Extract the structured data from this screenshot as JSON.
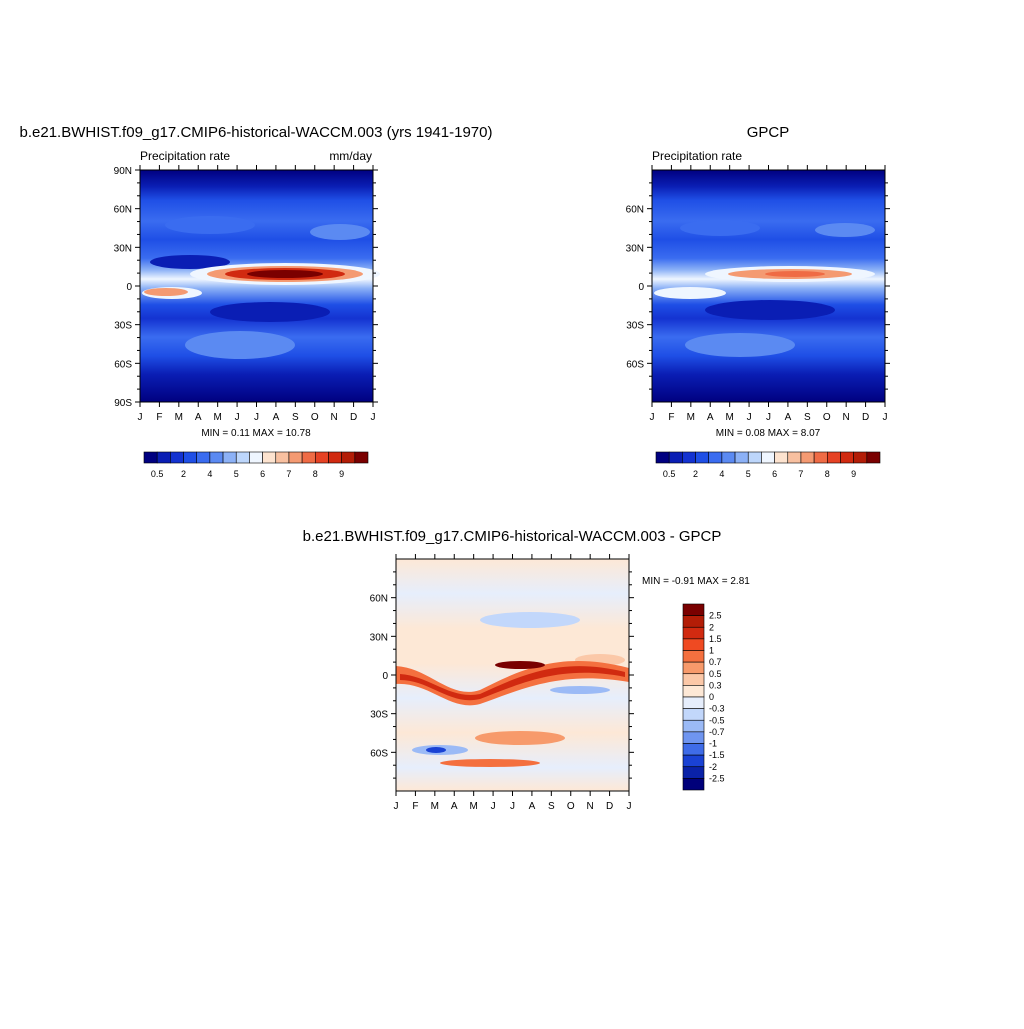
{
  "chart_data": [
    {
      "type": "heatmap",
      "title": "b.e21.BWHIST.f09_g17.CMIP6-historical-WACCM.003 (yrs 1941-1970)",
      "left_label": "Precipitation rate",
      "right_label": "mm/day",
      "x_ticks": [
        "J",
        "F",
        "M",
        "A",
        "M",
        "J",
        "J",
        "A",
        "S",
        "O",
        "N",
        "D",
        "J"
      ],
      "y_ticks": [
        "90N",
        "60N",
        "30N",
        "0",
        "30S",
        "60S",
        "90S"
      ],
      "stats": "MIN =   0.11 MAX =  10.78",
      "colorbar_labels": [
        "0.5",
        "2",
        "4",
        "5",
        "6",
        "7",
        "8",
        "9"
      ],
      "itcz": {
        "peak_value": 10.78,
        "peak_month": "Jul"
      }
    },
    {
      "type": "heatmap",
      "title": "GPCP",
      "left_label": "Precipitation rate",
      "right_label": "",
      "x_ticks": [
        "J",
        "F",
        "M",
        "A",
        "M",
        "J",
        "J",
        "A",
        "S",
        "O",
        "N",
        "D",
        "J"
      ],
      "y_ticks": [
        "60N",
        "30N",
        "0",
        "30S",
        "60S"
      ],
      "stats": "MIN =   0.08 MAX =   8.07",
      "colorbar_labels": [
        "0.5",
        "2",
        "4",
        "5",
        "6",
        "7",
        "8",
        "9"
      ],
      "itcz": {
        "peak_value": 8.07,
        "peak_month": "Aug"
      }
    },
    {
      "type": "heatmap",
      "title": "b.e21.BWHIST.f09_g17.CMIP6-historical-WACCM.003 - GPCP",
      "left_label": "",
      "right_label": "",
      "x_ticks": [
        "J",
        "F",
        "M",
        "A",
        "M",
        "J",
        "J",
        "A",
        "S",
        "O",
        "N",
        "D",
        "J"
      ],
      "y_ticks": [
        "60N",
        "30N",
        "0",
        "30S",
        "60S"
      ],
      "stats": "MIN =  -0.91 MAX =   2.81",
      "colorbar_labels": [
        "2.5",
        "2",
        "1.5",
        "1",
        "0.7",
        "0.5",
        "0.3",
        "0",
        "-0.3",
        "-0.5",
        "-0.7",
        "-1",
        "-1.5",
        "-2",
        "-2.5"
      ]
    }
  ],
  "colors": {
    "seq": [
      "#000080",
      "#0a1eb4",
      "#1433d1",
      "#1f4fe6",
      "#3a6cf0",
      "#5b8af2",
      "#8cb1f6",
      "#bdd6fb",
      "#eff6ff",
      "#fde3cf",
      "#f8c0a0",
      "#f49a72",
      "#ef6b45",
      "#e64224",
      "#d12a10",
      "#b31d07",
      "#7a0000"
    ],
    "diff": [
      "#7a0000",
      "#b31d07",
      "#d12a10",
      "#ef4a22",
      "#f4703f",
      "#f79a6b",
      "#fbc8a8",
      "#fde8d6",
      "#e6eefc",
      "#c2d7fb",
      "#9bbaf6",
      "#6f95f0",
      "#3f6ce8",
      "#1a42d4",
      "#0a22a8",
      "#00007a"
    ]
  }
}
